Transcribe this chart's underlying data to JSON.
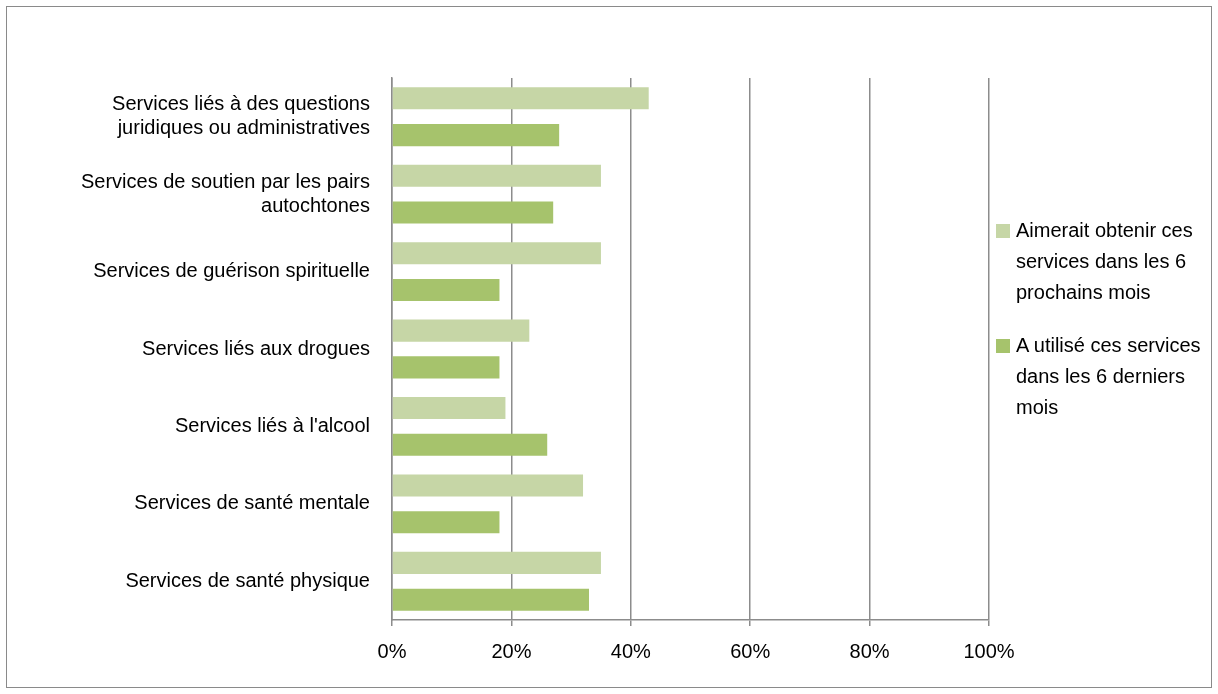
{
  "chart_data": {
    "type": "bar",
    "orientation": "horizontal",
    "categories": [
      "Services liés à des questions juridiques ou administratives",
      "Services de soutien par les pairs autochtones",
      "Services de guérison spirituelle",
      "Services liés aux drogues",
      "Services liés à l'alcool",
      "Services de santé mentale",
      "Services de santé physique"
    ],
    "series": [
      {
        "name": "Aimerait obtenir ces services dans les 6 prochains mois",
        "color": "#c6d6a6",
        "values": [
          43,
          35,
          35,
          23,
          19,
          32,
          35
        ]
      },
      {
        "name": "A utilisé ces services dans les 6 derniers mois",
        "color": "#a6c36c",
        "values": [
          28,
          27,
          18,
          18,
          26,
          18,
          33
        ]
      }
    ],
    "xlim": [
      0,
      100
    ],
    "xticks": [
      {
        "value": 0,
        "label": "0%"
      },
      {
        "value": 20,
        "label": "20%"
      },
      {
        "value": 40,
        "label": "40%"
      },
      {
        "value": 60,
        "label": "60%"
      },
      {
        "value": 80,
        "label": "80%"
      },
      {
        "value": 100,
        "label": "100%"
      }
    ],
    "grid": "x",
    "legend": "right"
  }
}
